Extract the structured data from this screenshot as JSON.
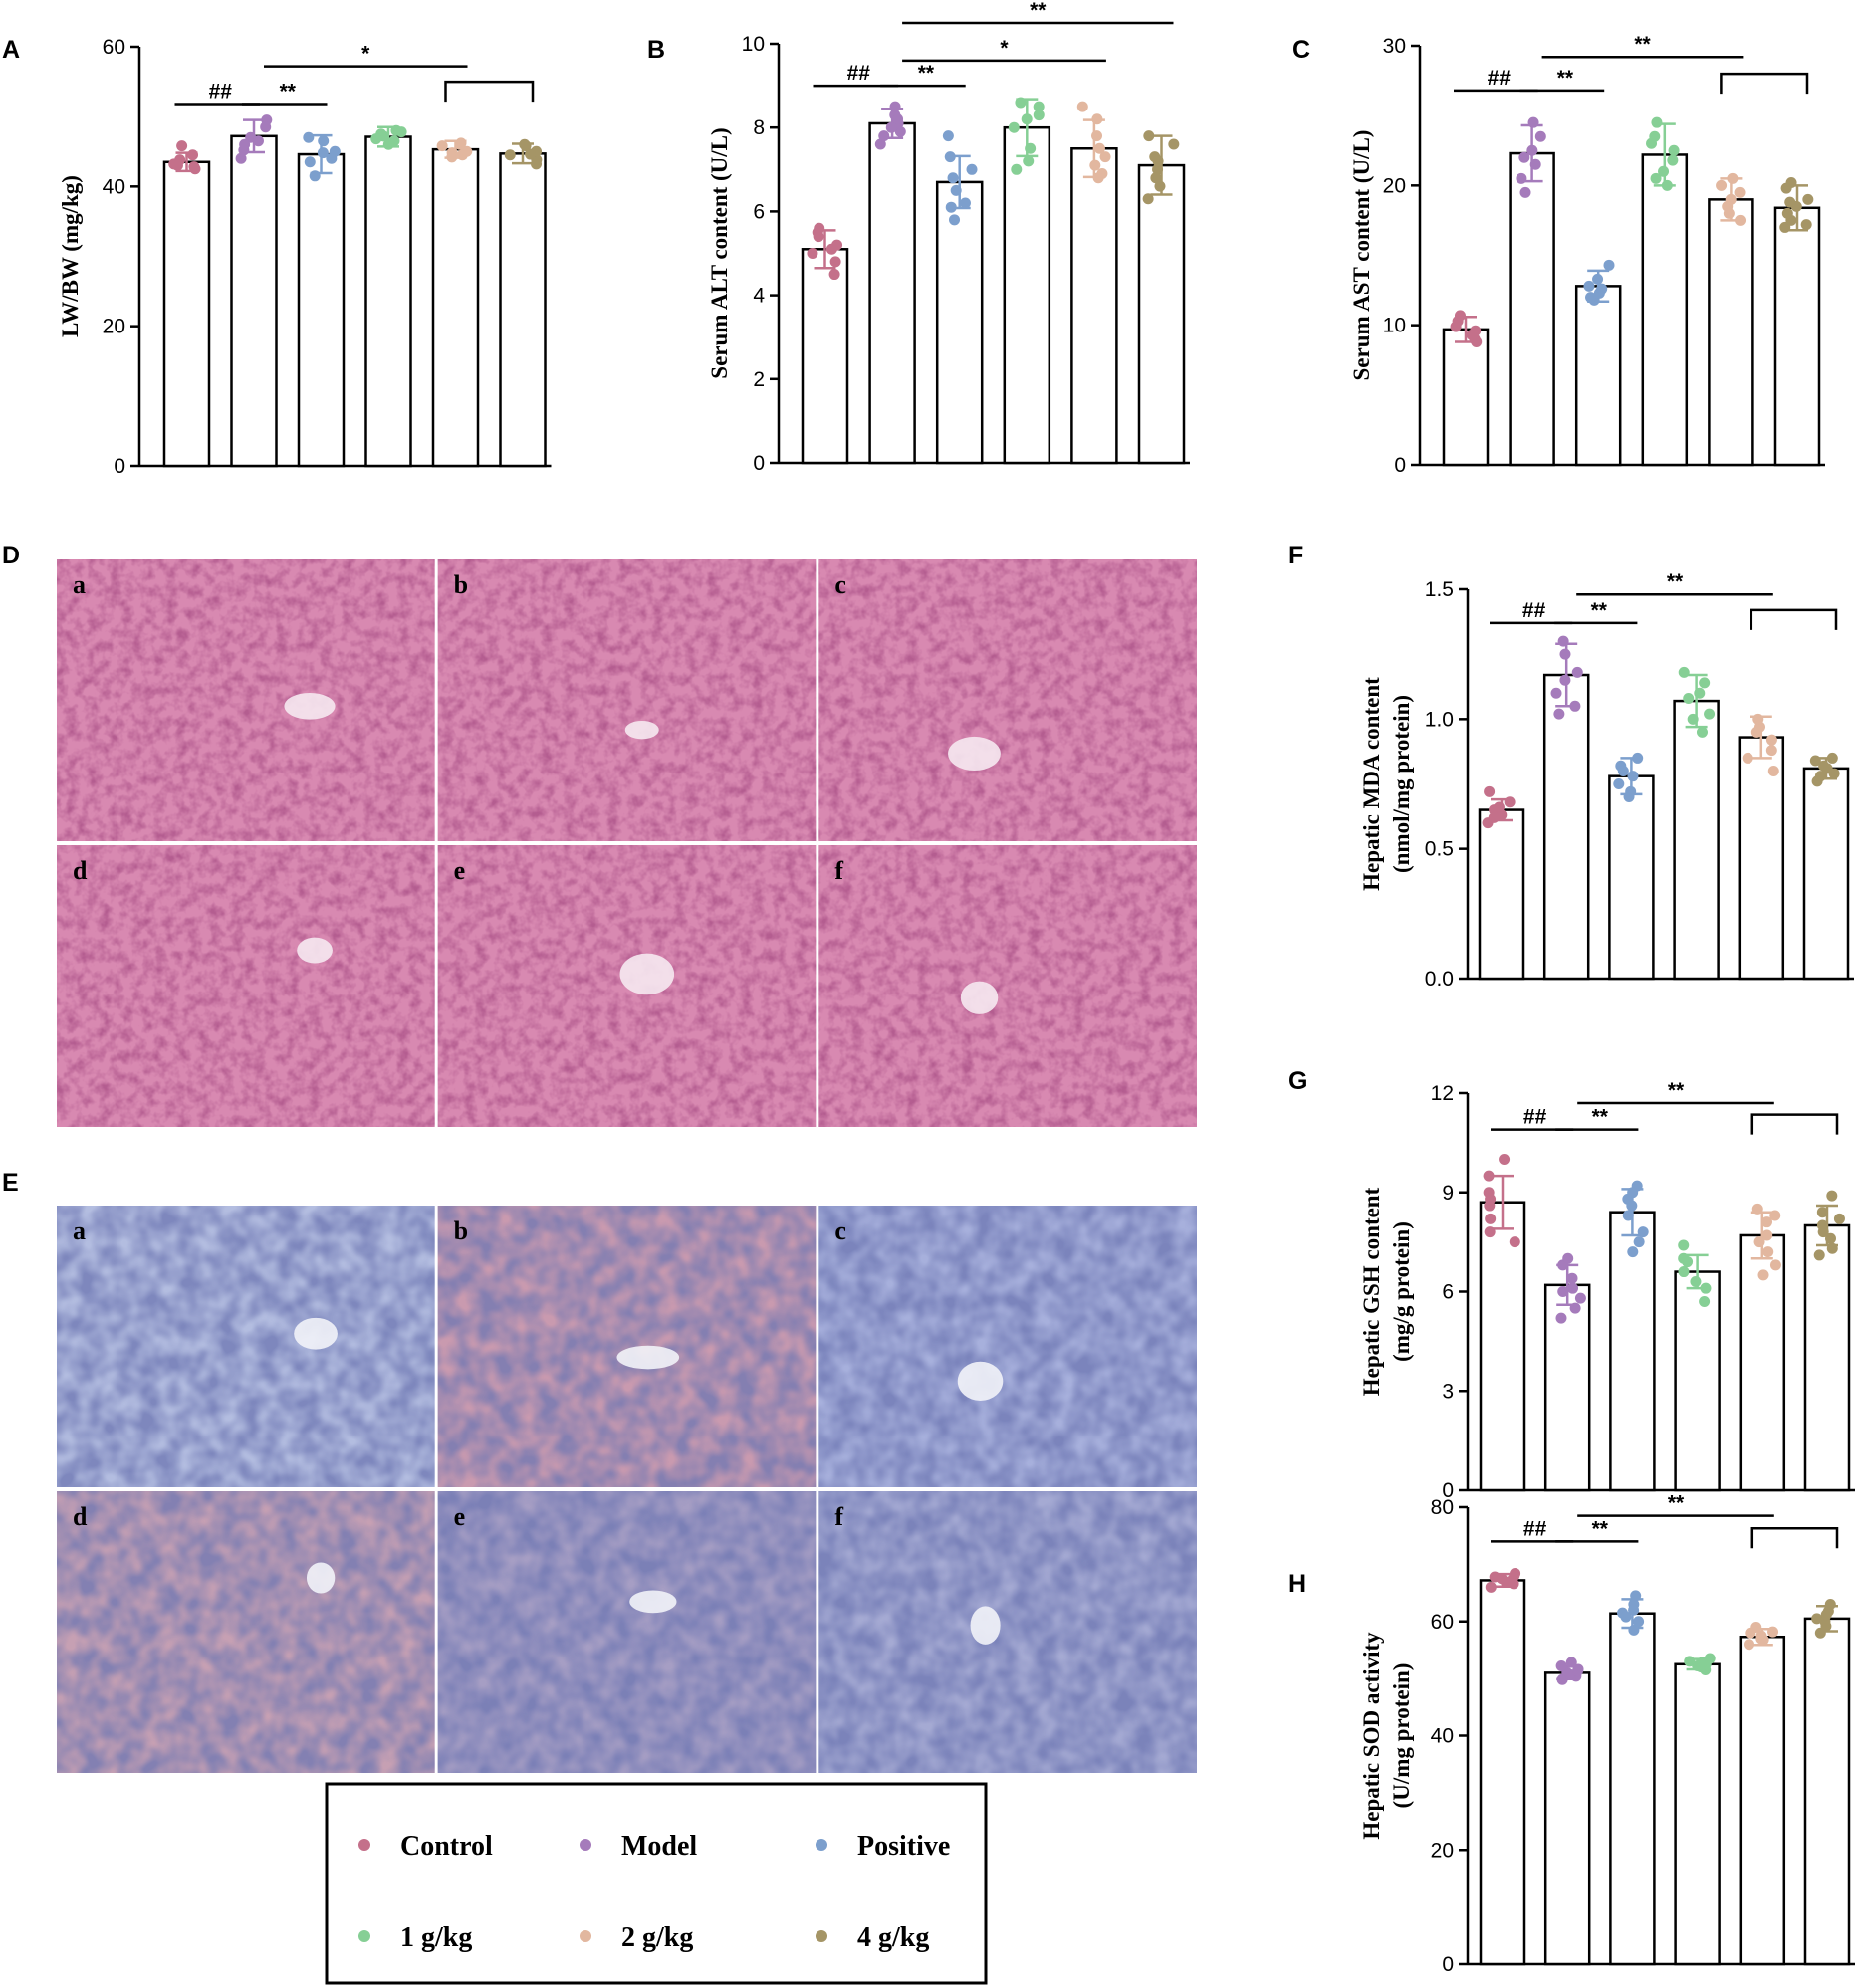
{
  "colors": {
    "Control": "#c4708a",
    "Model": "#a57bbb",
    "Positive": "#7c9fcd",
    "1 g/kg": "#86cf95",
    "2 g/kg": "#e2b79f",
    "4 g/kg": "#a59566",
    "he_stain": "#c96a98",
    "ihc_stain": "#9aa6cf"
  },
  "groups": [
    "Control",
    "Model",
    "Positive",
    "1 g/kg",
    "2 g/kg",
    "4 g/kg"
  ],
  "legend": {
    "items": [
      "Control",
      "Model",
      "Positive",
      "1 g/kg",
      "2 g/kg",
      "4 g/kg"
    ],
    "marker_icon": "dot-icon"
  },
  "micrographs": {
    "D": {
      "letter": "D",
      "labels": [
        "a",
        "b",
        "c",
        "d",
        "e",
        "f"
      ],
      "stain": "he"
    },
    "E": {
      "letter": "E",
      "labels": [
        "a",
        "b",
        "c",
        "d",
        "e",
        "f"
      ],
      "stain": "ihc"
    }
  },
  "chart_data": [
    {
      "id": "A",
      "letter": "A",
      "type": "bar",
      "categories": [
        "Control",
        "Model",
        "Positive",
        "1 g/kg",
        "2 g/kg",
        "4 g/kg"
      ],
      "values": [
        43.5,
        47.2,
        44.6,
        47.1,
        45.3,
        44.7
      ],
      "errors": [
        1.3,
        2.3,
        2.7,
        1.4,
        1.2,
        1.4
      ],
      "points": [
        [
          42.5,
          43.2,
          43.8,
          44.5,
          45.8,
          43.0,
          42.8
        ],
        [
          44.0,
          49.5,
          48.5,
          47.0,
          46.5,
          45.2,
          46.0
        ],
        [
          41.5,
          44.0,
          46.5,
          47.0,
          45.0,
          43.5,
          44.8
        ],
        [
          46.0,
          48.0,
          47.5,
          46.5,
          47.2,
          46.8,
          47.8
        ],
        [
          44.5,
          46.2,
          45.0,
          44.8,
          46.0,
          45.8,
          44.2
        ],
        [
          43.2,
          45.8,
          46.0,
          44.5,
          43.8,
          45.0,
          44.6
        ]
      ],
      "ylabel": "LW/BW (mg/kg)",
      "ylim": [
        0,
        60
      ],
      "yticks": [
        0,
        20,
        40,
        60
      ],
      "significance": [
        {
          "type": "pair",
          "from": 0,
          "to": 1,
          "y": 51.8,
          "label": "##"
        },
        {
          "type": "pair",
          "from": 1,
          "to": 2,
          "y": 51.8,
          "label": "**"
        },
        {
          "type": "line",
          "from": 1,
          "to": 4,
          "y": 57.2,
          "label": "*"
        },
        {
          "type": "bracket",
          "from": 4,
          "to": 5,
          "y": 55.0
        }
      ]
    },
    {
      "id": "B",
      "letter": "B",
      "type": "bar",
      "categories": [
        "Control",
        "Model",
        "Positive",
        "1 g/kg",
        "2 g/kg",
        "4 g/kg"
      ],
      "values": [
        5.1,
        8.1,
        6.7,
        8.0,
        7.5,
        7.1
      ],
      "errors": [
        0.45,
        0.35,
        0.62,
        0.68,
        0.68,
        0.7
      ],
      "points": [
        [
          4.5,
          4.8,
          5.0,
          5.2,
          5.4,
          5.5,
          5.6,
          5.1
        ],
        [
          7.6,
          7.9,
          8.1,
          8.3,
          8.5,
          7.8,
          8.2,
          8.0
        ],
        [
          5.8,
          6.2,
          6.5,
          6.8,
          7.0,
          7.3,
          7.8,
          6.1
        ],
        [
          7.2,
          7.5,
          8.0,
          8.3,
          8.6,
          7.0,
          8.2,
          8.5
        ],
        [
          6.9,
          7.1,
          7.5,
          7.8,
          8.2,
          8.5,
          7.3,
          6.8
        ],
        [
          6.3,
          6.6,
          7.0,
          7.3,
          7.6,
          7.8,
          6.8,
          7.2
        ]
      ],
      "ylabel": "Serum ALT content (U/L)",
      "ylim": [
        0,
        10
      ],
      "yticks": [
        0,
        2,
        4,
        6,
        8,
        10
      ],
      "significance": [
        {
          "type": "pair",
          "from": 0,
          "to": 1,
          "y": 9.0,
          "label": "##"
        },
        {
          "type": "pair",
          "from": 1,
          "to": 2,
          "y": 9.0,
          "label": "**"
        },
        {
          "type": "line",
          "from": 1,
          "to": 4,
          "y": 9.6,
          "label": "*"
        },
        {
          "type": "line",
          "from": 1,
          "to": 5,
          "y": 10.5,
          "label": "**"
        }
      ]
    },
    {
      "id": "C",
      "letter": "C",
      "type": "bar",
      "categories": [
        "Control",
        "Model",
        "Positive",
        "1 g/kg",
        "2 g/kg",
        "4 g/kg"
      ],
      "values": [
        9.7,
        22.3,
        12.8,
        22.2,
        19.0,
        18.4
      ],
      "errors": [
        0.9,
        2.0,
        1.1,
        2.2,
        1.5,
        1.6
      ],
      "points": [
        [
          8.8,
          9.3,
          9.6,
          9.9,
          10.3,
          10.7,
          9.0
        ],
        [
          20.5,
          21.5,
          22.5,
          23.5,
          24.5,
          19.5,
          22.0
        ],
        [
          11.8,
          12.3,
          12.8,
          13.3,
          14.3,
          12.0,
          12.6
        ],
        [
          20.0,
          21.0,
          22.5,
          23.5,
          24.5,
          20.5,
          23.0,
          21.8
        ],
        [
          17.5,
          18.5,
          19.0,
          19.5,
          20.5,
          20.0,
          18.0
        ],
        [
          17.0,
          17.5,
          18.0,
          18.5,
          19.0,
          19.8,
          17.2,
          18.8,
          20.2
        ]
      ],
      "ylabel": "Serum AST content (U/L)",
      "ylim": [
        0,
        30
      ],
      "yticks": [
        0,
        10,
        20,
        30
      ],
      "significance": [
        {
          "type": "pair",
          "from": 0,
          "to": 1,
          "y": 26.8,
          "label": "##"
        },
        {
          "type": "pair",
          "from": 1,
          "to": 2,
          "y": 26.8,
          "label": "**"
        },
        {
          "type": "line",
          "from": 1,
          "to": 4,
          "y": 29.2,
          "label": "**"
        },
        {
          "type": "bracket",
          "from": 4,
          "to": 5,
          "y": 28.0
        }
      ]
    },
    {
      "id": "F",
      "letter": "F",
      "type": "bar",
      "categories": [
        "Control",
        "Model",
        "Positive",
        "1 g/kg",
        "2 g/kg",
        "4 g/kg"
      ],
      "values": [
        0.65,
        1.17,
        0.78,
        1.07,
        0.93,
        0.81
      ],
      "errors": [
        0.04,
        0.12,
        0.07,
        0.1,
        0.08,
        0.04
      ],
      "points": [
        [
          0.6,
          0.62,
          0.65,
          0.68,
          0.72,
          0.63,
          0.66
        ],
        [
          1.02,
          1.1,
          1.18,
          1.25,
          1.3,
          1.15,
          1.05
        ],
        [
          0.72,
          0.75,
          0.78,
          0.82,
          0.85,
          0.7,
          0.8
        ],
        [
          0.95,
          1.02,
          1.08,
          1.14,
          1.18,
          1.0,
          1.1
        ],
        [
          0.8,
          0.88,
          0.92,
          0.97,
          1.0,
          0.95,
          0.85
        ],
        [
          0.76,
          0.79,
          0.81,
          0.84,
          0.85,
          0.78,
          0.82
        ]
      ],
      "ylabel": "Hepatic MDA content",
      "ylabel2": "(nmol/mg protein)",
      "ylim": [
        0,
        1.5
      ],
      "yticks": [
        0.0,
        0.5,
        1.0,
        1.5
      ],
      "significance": [
        {
          "type": "pair",
          "from": 0,
          "to": 1,
          "y": 1.37,
          "label": "##"
        },
        {
          "type": "pair",
          "from": 1,
          "to": 2,
          "y": 1.37,
          "label": "**"
        },
        {
          "type": "line",
          "from": 1,
          "to": 4,
          "y": 1.48,
          "label": "**"
        },
        {
          "type": "bracket",
          "from": 4,
          "to": 5,
          "y": 1.42
        }
      ]
    },
    {
      "id": "G",
      "letter": "G",
      "type": "bar",
      "categories": [
        "Control",
        "Model",
        "Positive",
        "1 g/kg",
        "2 g/kg",
        "4 g/kg"
      ],
      "values": [
        8.7,
        6.2,
        8.4,
        6.6,
        7.7,
        8.0
      ],
      "errors": [
        0.8,
        0.6,
        0.7,
        0.5,
        0.7,
        0.6
      ],
      "points": [
        [
          7.8,
          8.2,
          8.6,
          9.0,
          9.5,
          10.0,
          7.5,
          8.8
        ],
        [
          5.2,
          5.8,
          6.1,
          6.4,
          6.8,
          7.0,
          6.0,
          5.5
        ],
        [
          7.2,
          7.8,
          8.3,
          8.8,
          9.2,
          8.6,
          7.5,
          9.0
        ],
        [
          5.7,
          6.1,
          6.6,
          7.0,
          7.4,
          6.3,
          6.9
        ],
        [
          6.8,
          7.2,
          7.7,
          8.1,
          8.5,
          7.5,
          6.5,
          8.3
        ],
        [
          7.1,
          7.6,
          8.0,
          8.4,
          8.9,
          7.8,
          8.2,
          7.3
        ]
      ],
      "ylabel": "Hepatic GSH content",
      "ylabel2": "(mg/g protein)",
      "ylim": [
        0,
        12
      ],
      "yticks": [
        0,
        3,
        6,
        9,
        12
      ],
      "significance": [
        {
          "type": "pair",
          "from": 0,
          "to": 1,
          "y": 10.9,
          "label": "##"
        },
        {
          "type": "pair",
          "from": 1,
          "to": 2,
          "y": 10.9,
          "label": "**"
        },
        {
          "type": "line",
          "from": 1,
          "to": 4,
          "y": 11.7,
          "label": "**"
        },
        {
          "type": "bracket",
          "from": 4,
          "to": 5,
          "y": 11.35
        }
      ]
    },
    {
      "id": "H",
      "letter": "H",
      "type": "bar",
      "categories": [
        "Control",
        "Model",
        "Positive",
        "1 g/kg",
        "2 g/kg",
        "4 g/kg"
      ],
      "values": [
        67.2,
        51.0,
        61.4,
        52.5,
        57.3,
        60.5
      ],
      "errors": [
        1.1,
        1.1,
        2.5,
        0.9,
        1.4,
        2.2
      ],
      "points": [
        [
          66.0,
          66.6,
          67.2,
          67.8,
          68.4,
          66.9,
          67.5,
          68.0
        ],
        [
          49.8,
          50.4,
          51.0,
          51.6,
          52.2,
          50.7,
          51.3,
          52.8
        ],
        [
          58.5,
          60.0,
          61.5,
          63.0,
          64.5,
          62.0,
          60.8
        ],
        [
          51.5,
          52.0,
          52.5,
          53.0,
          53.5,
          52.2,
          52.8
        ],
        [
          56.0,
          56.8,
          57.5,
          58.2,
          59.0,
          57.0,
          58.0
        ],
        [
          58.0,
          59.2,
          60.5,
          61.8,
          63.0,
          60.0,
          61.2
        ]
      ],
      "ylabel": "Hepatic SOD activity",
      "ylabel2": "(U/mg protein)",
      "ylim": [
        0,
        80
      ],
      "yticks": [
        0,
        20,
        40,
        60,
        80
      ],
      "significance": [
        {
          "type": "pair",
          "from": 0,
          "to": 1,
          "y": 74.0,
          "label": "##"
        },
        {
          "type": "pair",
          "from": 1,
          "to": 2,
          "y": 74.0,
          "label": "**"
        },
        {
          "type": "line",
          "from": 1,
          "to": 4,
          "y": 78.5,
          "label": "**"
        },
        {
          "type": "bracket",
          "from": 4,
          "to": 5,
          "y": 76.3
        }
      ]
    }
  ]
}
